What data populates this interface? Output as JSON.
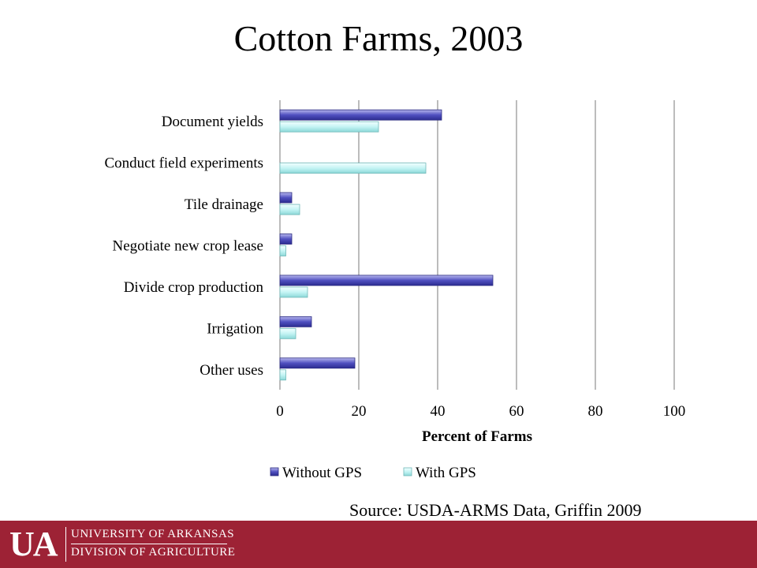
{
  "slide": {
    "title": "Cotton Farms, 2003",
    "source": "Source: USDA-ARMS Data, Griffin 2009"
  },
  "footer": {
    "logo_text": "UA",
    "org_line1": "UNIVERSITY OF ARKANSAS",
    "org_line2": "DIVISION OF AGRICULTURE",
    "background_color": "#9d2235"
  },
  "chart_data": {
    "type": "bar",
    "orientation": "horizontal",
    "categories": [
      "Document yields",
      "Conduct field experiments",
      "Tile drainage",
      "Negotiate new crop lease",
      "Divide crop production",
      "Irrigation",
      "Other uses"
    ],
    "series": [
      {
        "name": "Without GPS",
        "values": [
          41,
          0,
          3,
          3,
          54,
          8,
          19
        ],
        "color": "#4040b0"
      },
      {
        "name": "With GPS",
        "values": [
          25,
          37,
          5,
          1.5,
          7,
          4,
          1.5
        ],
        "color": "#b9f0f0"
      }
    ],
    "xlabel": "Percent of Farms",
    "xlim": [
      0,
      100
    ],
    "xticks": [
      "0",
      "20",
      "40",
      "60",
      "80",
      "100"
    ],
    "grid": "vertical",
    "legend_position": "bottom"
  }
}
